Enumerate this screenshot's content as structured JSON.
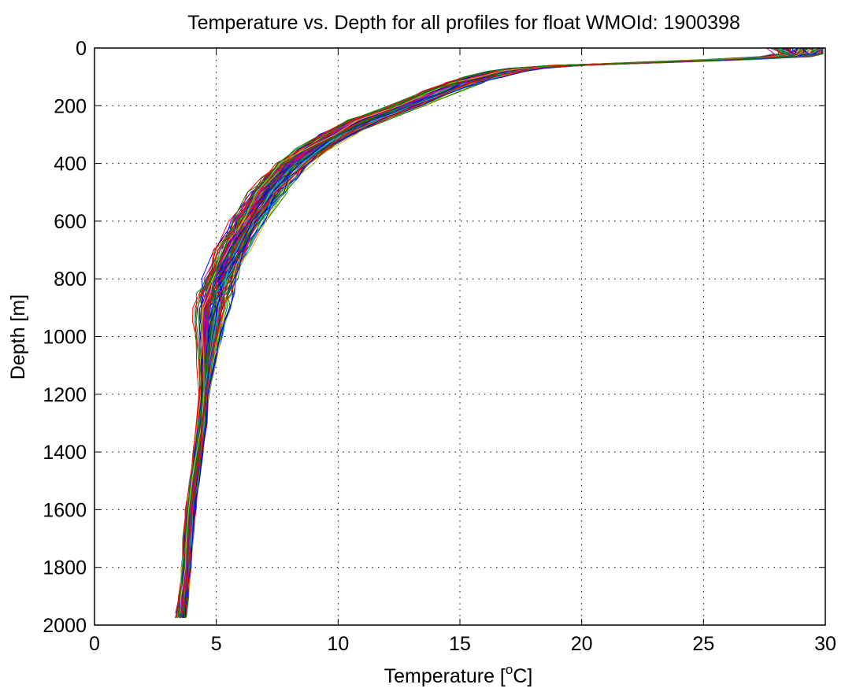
{
  "chart_data": {
    "type": "line",
    "title": "Temperature vs. Depth for all profiles for float WMOId: 1900398",
    "xlabel_prefix": "Temperature [",
    "xlabel_sup": "o",
    "xlabel_suffix": "C]",
    "ylabel": "Depth [m]",
    "xlim": [
      0,
      30
    ],
    "ylim": [
      0,
      2000
    ],
    "y_reversed": true,
    "grid": true,
    "xticks": [
      0,
      5,
      10,
      15,
      20,
      25,
      30
    ],
    "yticks": [
      0,
      200,
      400,
      600,
      800,
      1000,
      1200,
      1400,
      1600,
      1800,
      2000
    ],
    "reference_profile": {
      "depth": [
        0,
        20,
        30,
        40,
        50,
        60,
        70,
        80,
        100,
        120,
        150,
        200,
        250,
        300,
        350,
        400,
        450,
        500,
        600,
        700,
        800,
        850,
        900,
        950,
        1000,
        1100,
        1200,
        1300,
        1400,
        1500,
        1600,
        1700,
        1800,
        1900,
        1975
      ],
      "temperature": [
        29.5,
        29.3,
        28.5,
        26.0,
        23.0,
        19.5,
        17.8,
        17.0,
        16.0,
        15.2,
        14.2,
        12.8,
        11.2,
        10.0,
        9.0,
        8.2,
        7.6,
        7.1,
        6.3,
        5.7,
        5.2,
        5.0,
        4.85,
        4.75,
        4.7,
        4.6,
        4.5,
        4.4,
        4.25,
        4.1,
        3.95,
        3.85,
        3.75,
        3.65,
        3.55
      ]
    },
    "series_count": 120,
    "series_colors": [
      "#0000ff",
      "#008000",
      "#ff0000",
      "#00bfbf",
      "#bf00bf",
      "#bfbf00",
      "#404040",
      "#0000ff",
      "#ff0000",
      "#008000"
    ]
  }
}
